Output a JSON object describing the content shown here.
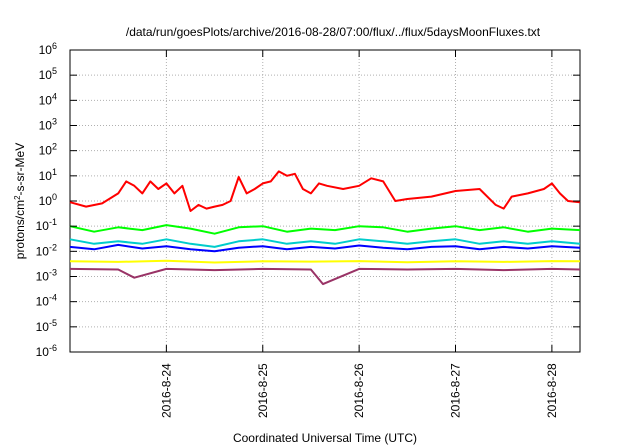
{
  "chart_data": {
    "type": "line",
    "title": "/data/run/goesPlots/archive/2016-08-28/07:00/flux/../flux/5daysMoonFluxes.txt",
    "xlabel": "Coordinated Universal Time (UTC)",
    "ylabel_main": "protons/cm",
    "ylabel_sup": "2",
    "ylabel_tail": "-s-sr-MeV",
    "yscale": "log",
    "ylim": [
      1e-06,
      1000000.0
    ],
    "xlim": [
      "2016-08-23 00:00",
      "2016-08-28 07:00"
    ],
    "grid": true,
    "x_ticks": [
      {
        "t": "2016-08-24 00:00",
        "label": "2016-8-24"
      },
      {
        "t": "2016-08-25 00:00",
        "label": "2016-8-25"
      },
      {
        "t": "2016-08-26 00:00",
        "label": "2016-8-26"
      },
      {
        "t": "2016-08-27 00:00",
        "label": "2016-8-27"
      },
      {
        "t": "2016-08-28 00:00",
        "label": "2016-8-28"
      }
    ],
    "y_ticks": [
      {
        "exp": -6,
        "base": "10",
        "sup": "-6"
      },
      {
        "exp": -5,
        "base": "10",
        "sup": "-5"
      },
      {
        "exp": -4,
        "base": "10",
        "sup": "-4"
      },
      {
        "exp": -3,
        "base": "10",
        "sup": "-3"
      },
      {
        "exp": -2,
        "base": "10",
        "sup": "-2"
      },
      {
        "exp": -1,
        "base": "10",
        "sup": "-1"
      },
      {
        "exp": 0,
        "base": "10",
        "sup": "0"
      },
      {
        "exp": 1,
        "base": "10",
        "sup": "1"
      },
      {
        "exp": 2,
        "base": "10",
        "sup": "2"
      },
      {
        "exp": 3,
        "base": "10",
        "sup": "3"
      },
      {
        "exp": 4,
        "base": "10",
        "sup": "4"
      },
      {
        "exp": 5,
        "base": "10",
        "sup": "5"
      },
      {
        "exp": 6,
        "base": "10",
        "sup": "6"
      }
    ],
    "series": [
      {
        "color": "#ff0000",
        "x": [
          "2016-08-23 00:00",
          "2016-08-23 04:00",
          "2016-08-23 08:00",
          "2016-08-23 12:00",
          "2016-08-23 14:00",
          "2016-08-23 16:00",
          "2016-08-23 18:00",
          "2016-08-23 20:00",
          "2016-08-23 22:00",
          "2016-08-24 00:00",
          "2016-08-24 02:00",
          "2016-08-24 04:00",
          "2016-08-24 06:00",
          "2016-08-24 08:00",
          "2016-08-24 10:00",
          "2016-08-24 12:00",
          "2016-08-24 14:00",
          "2016-08-24 16:00",
          "2016-08-24 18:00",
          "2016-08-24 20:00",
          "2016-08-24 22:00",
          "2016-08-25 00:00",
          "2016-08-25 02:00",
          "2016-08-25 04:00",
          "2016-08-25 06:00",
          "2016-08-25 08:00",
          "2016-08-25 10:00",
          "2016-08-25 12:00",
          "2016-08-25 14:00",
          "2016-08-25 16:00",
          "2016-08-25 20:00",
          "2016-08-26 00:00",
          "2016-08-26 03:00",
          "2016-08-26 06:00",
          "2016-08-26 09:00",
          "2016-08-26 12:00",
          "2016-08-26 18:00",
          "2016-08-27 00:00",
          "2016-08-27 06:00",
          "2016-08-27 10:00",
          "2016-08-27 12:00",
          "2016-08-27 14:00",
          "2016-08-27 18:00",
          "2016-08-27 22:00",
          "2016-08-28 00:00",
          "2016-08-28 02:00",
          "2016-08-28 04:00",
          "2016-08-28 07:00"
        ],
        "values": [
          0.9,
          0.6,
          0.8,
          2,
          6,
          4,
          2,
          6,
          3,
          5,
          2,
          4,
          0.4,
          0.7,
          0.5,
          0.6,
          0.7,
          1,
          9,
          2,
          3,
          5,
          6,
          15,
          10,
          12,
          3,
          2,
          5,
          4,
          3,
          4,
          8,
          6,
          1,
          1.2,
          1.5,
          2.5,
          3,
          0.7,
          0.5,
          1.5,
          2,
          3,
          5,
          2,
          1,
          0.9
        ]
      },
      {
        "color": "#00ff00",
        "x": [
          "2016-08-23 00:00",
          "2016-08-23 06:00",
          "2016-08-23 12:00",
          "2016-08-23 18:00",
          "2016-08-24 00:00",
          "2016-08-24 06:00",
          "2016-08-24 12:00",
          "2016-08-24 18:00",
          "2016-08-25 00:00",
          "2016-08-25 06:00",
          "2016-08-25 12:00",
          "2016-08-25 18:00",
          "2016-08-26 00:00",
          "2016-08-26 06:00",
          "2016-08-26 12:00",
          "2016-08-26 18:00",
          "2016-08-27 00:00",
          "2016-08-27 06:00",
          "2016-08-27 12:00",
          "2016-08-27 18:00",
          "2016-08-28 00:00",
          "2016-08-28 07:00"
        ],
        "values": [
          0.1,
          0.06,
          0.09,
          0.07,
          0.11,
          0.08,
          0.05,
          0.09,
          0.1,
          0.06,
          0.08,
          0.07,
          0.1,
          0.09,
          0.06,
          0.08,
          0.1,
          0.07,
          0.09,
          0.06,
          0.08,
          0.07
        ]
      },
      {
        "color": "#00cccc",
        "x": [
          "2016-08-23 00:00",
          "2016-08-23 06:00",
          "2016-08-23 12:00",
          "2016-08-23 18:00",
          "2016-08-24 00:00",
          "2016-08-24 06:00",
          "2016-08-24 12:00",
          "2016-08-24 18:00",
          "2016-08-25 00:00",
          "2016-08-25 06:00",
          "2016-08-25 12:00",
          "2016-08-25 18:00",
          "2016-08-26 00:00",
          "2016-08-26 06:00",
          "2016-08-26 12:00",
          "2016-08-26 18:00",
          "2016-08-27 00:00",
          "2016-08-27 06:00",
          "2016-08-27 12:00",
          "2016-08-27 18:00",
          "2016-08-28 00:00",
          "2016-08-28 07:00"
        ],
        "values": [
          0.03,
          0.02,
          0.025,
          0.02,
          0.03,
          0.02,
          0.015,
          0.025,
          0.03,
          0.02,
          0.025,
          0.02,
          0.03,
          0.025,
          0.02,
          0.025,
          0.03,
          0.02,
          0.025,
          0.02,
          0.025,
          0.02
        ]
      },
      {
        "color": "#0000ff",
        "x": [
          "2016-08-23 00:00",
          "2016-08-23 06:00",
          "2016-08-23 12:00",
          "2016-08-23 18:00",
          "2016-08-24 00:00",
          "2016-08-24 06:00",
          "2016-08-24 12:00",
          "2016-08-24 18:00",
          "2016-08-25 00:00",
          "2016-08-25 06:00",
          "2016-08-25 12:00",
          "2016-08-25 18:00",
          "2016-08-26 00:00",
          "2016-08-26 06:00",
          "2016-08-26 12:00",
          "2016-08-26 18:00",
          "2016-08-27 00:00",
          "2016-08-27 06:00",
          "2016-08-27 12:00",
          "2016-08-27 18:00",
          "2016-08-28 00:00",
          "2016-08-28 07:00"
        ],
        "values": [
          0.015,
          0.012,
          0.018,
          0.013,
          0.016,
          0.012,
          0.01,
          0.014,
          0.016,
          0.012,
          0.015,
          0.013,
          0.017,
          0.014,
          0.012,
          0.015,
          0.016,
          0.012,
          0.015,
          0.013,
          0.016,
          0.014
        ]
      },
      {
        "color": "#ffff00",
        "x": [
          "2016-08-23 00:00",
          "2016-08-23 12:00",
          "2016-08-24 00:00",
          "2016-08-24 12:00",
          "2016-08-25 00:00",
          "2016-08-25 12:00",
          "2016-08-26 00:00",
          "2016-08-26 12:00",
          "2016-08-27 00:00",
          "2016-08-27 12:00",
          "2016-08-28 00:00",
          "2016-08-28 07:00"
        ],
        "values": [
          0.004,
          0.0038,
          0.0042,
          0.0036,
          0.004,
          0.0039,
          0.0041,
          0.0037,
          0.004,
          0.0038,
          0.0041,
          0.004
        ]
      },
      {
        "color": "#993366",
        "x": [
          "2016-08-23 00:00",
          "2016-08-23 12:00",
          "2016-08-23 16:00",
          "2016-08-24 00:00",
          "2016-08-24 12:00",
          "2016-08-25 00:00",
          "2016-08-25 12:00",
          "2016-08-25 15:00",
          "2016-08-26 00:00",
          "2016-08-26 12:00",
          "2016-08-27 00:00",
          "2016-08-27 12:00",
          "2016-08-28 00:00",
          "2016-08-28 07:00"
        ],
        "values": [
          0.002,
          0.0019,
          0.0009,
          0.002,
          0.0018,
          0.002,
          0.0019,
          0.0005,
          0.002,
          0.0019,
          0.002,
          0.0018,
          0.002,
          0.0019
        ]
      }
    ]
  }
}
